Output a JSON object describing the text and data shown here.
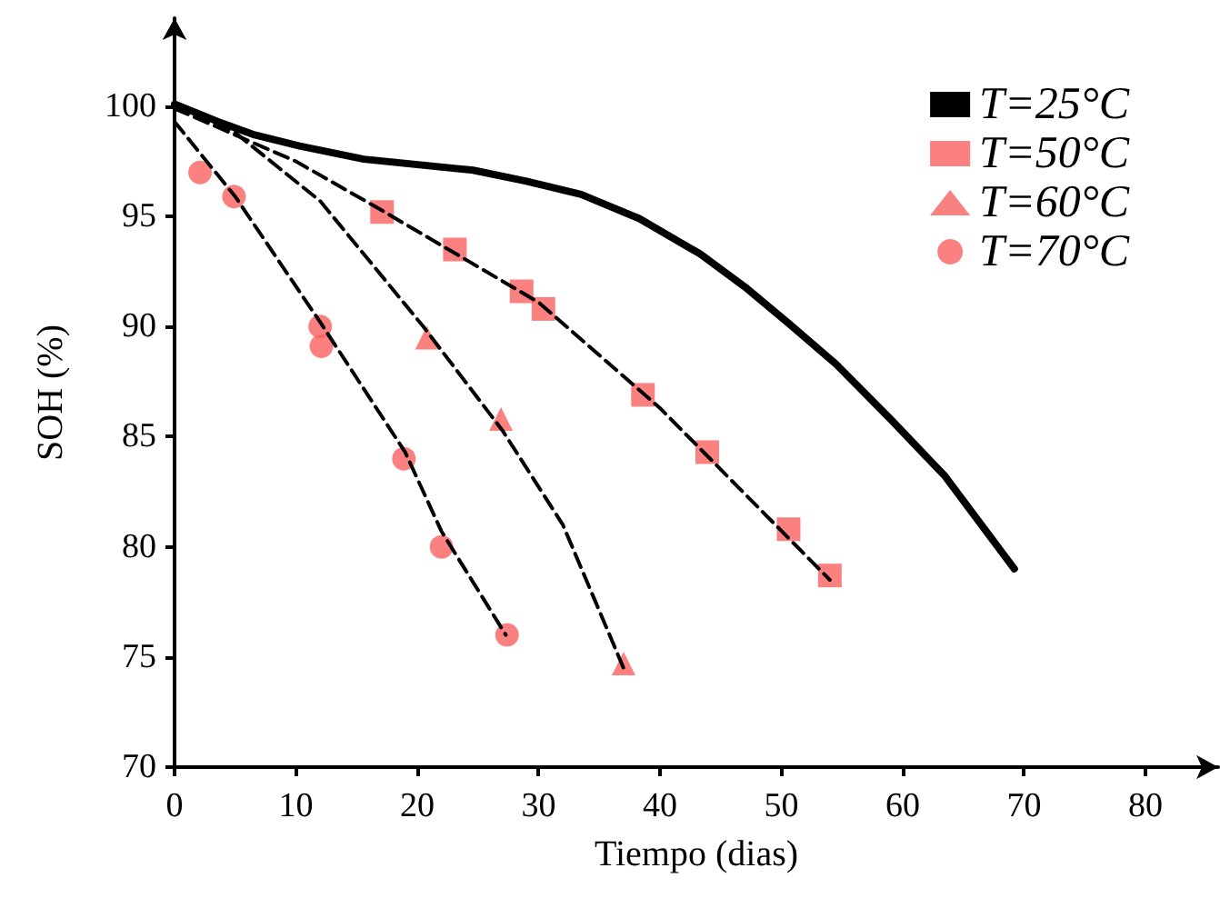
{
  "chart_data": {
    "type": "scatter",
    "xlabel": "Tiempo (dias)",
    "ylabel": "SOH (%)",
    "xlim": [
      0,
      86
    ],
    "ylim": [
      70,
      104
    ],
    "xticks": [
      0,
      10,
      20,
      30,
      40,
      50,
      60,
      70,
      80
    ],
    "yticks": [
      70,
      75,
      80,
      85,
      90,
      95,
      100
    ],
    "grid": false,
    "legend": "top right",
    "series": [
      {
        "name": "T=25°C",
        "type": "line",
        "color": "#000000",
        "marker": "none",
        "line_style": "solid",
        "x": [
          0,
          3.6,
          6.6,
          10.3,
          15.6,
          24.6,
          29,
          33.5,
          38.3,
          43.3,
          47,
          50.7,
          54.5,
          59,
          63.5,
          69.2
        ],
        "values": [
          100.1,
          99.3,
          98.7,
          98.2,
          97.6,
          97.1,
          96.6,
          96,
          94.9,
          93.3,
          91.8,
          90.1,
          88.3,
          85.8,
          83.2,
          79
        ]
      },
      {
        "name": "T=50°C",
        "color": "#fa6060",
        "marker": "square",
        "x": [
          17.1,
          23.1,
          28.6,
          30.4,
          38.6,
          43.9,
          50.6,
          54
        ],
        "values": [
          95.2,
          93.5,
          91.6,
          90.8,
          86.9,
          84.3,
          80.8,
          78.7
        ]
      },
      {
        "name": "T=60°C",
        "color": "#fa6060",
        "marker": "triangle",
        "x": [
          20.8,
          26.9,
          37
        ],
        "values": [
          89.5,
          85.8,
          74.7
        ]
      },
      {
        "name": "T=70°C",
        "color": "#fa6060",
        "marker": "circle",
        "x": [
          2.1,
          4.9,
          12,
          12.1,
          18.9,
          22,
          27.4
        ],
        "values": [
          97,
          95.9,
          90,
          89.1,
          84,
          80,
          76
        ]
      },
      {
        "type": "line",
        "color": "#000000",
        "marker": "none",
        "line_style": "dashed",
        "x": [
          0,
          10,
          17,
          30,
          40,
          54
        ],
        "values": [
          99.9,
          97.5,
          95.3,
          91.1,
          86.3,
          78.5
        ]
      },
      {
        "type": "line",
        "color": "#000000",
        "marker": "none",
        "line_style": "dashed",
        "x": [
          0,
          5,
          12,
          20.5,
          27,
          32,
          37
        ],
        "values": [
          99.9,
          98.8,
          95.7,
          90,
          85.3,
          81,
          74.5
        ]
      },
      {
        "type": "line",
        "color": "#000000",
        "marker": "none",
        "line_style": "dashed",
        "x": [
          0,
          5,
          12,
          19,
          22,
          27.3
        ],
        "values": [
          99.3,
          95.9,
          90.2,
          84.3,
          80.7,
          76
        ]
      }
    ]
  }
}
